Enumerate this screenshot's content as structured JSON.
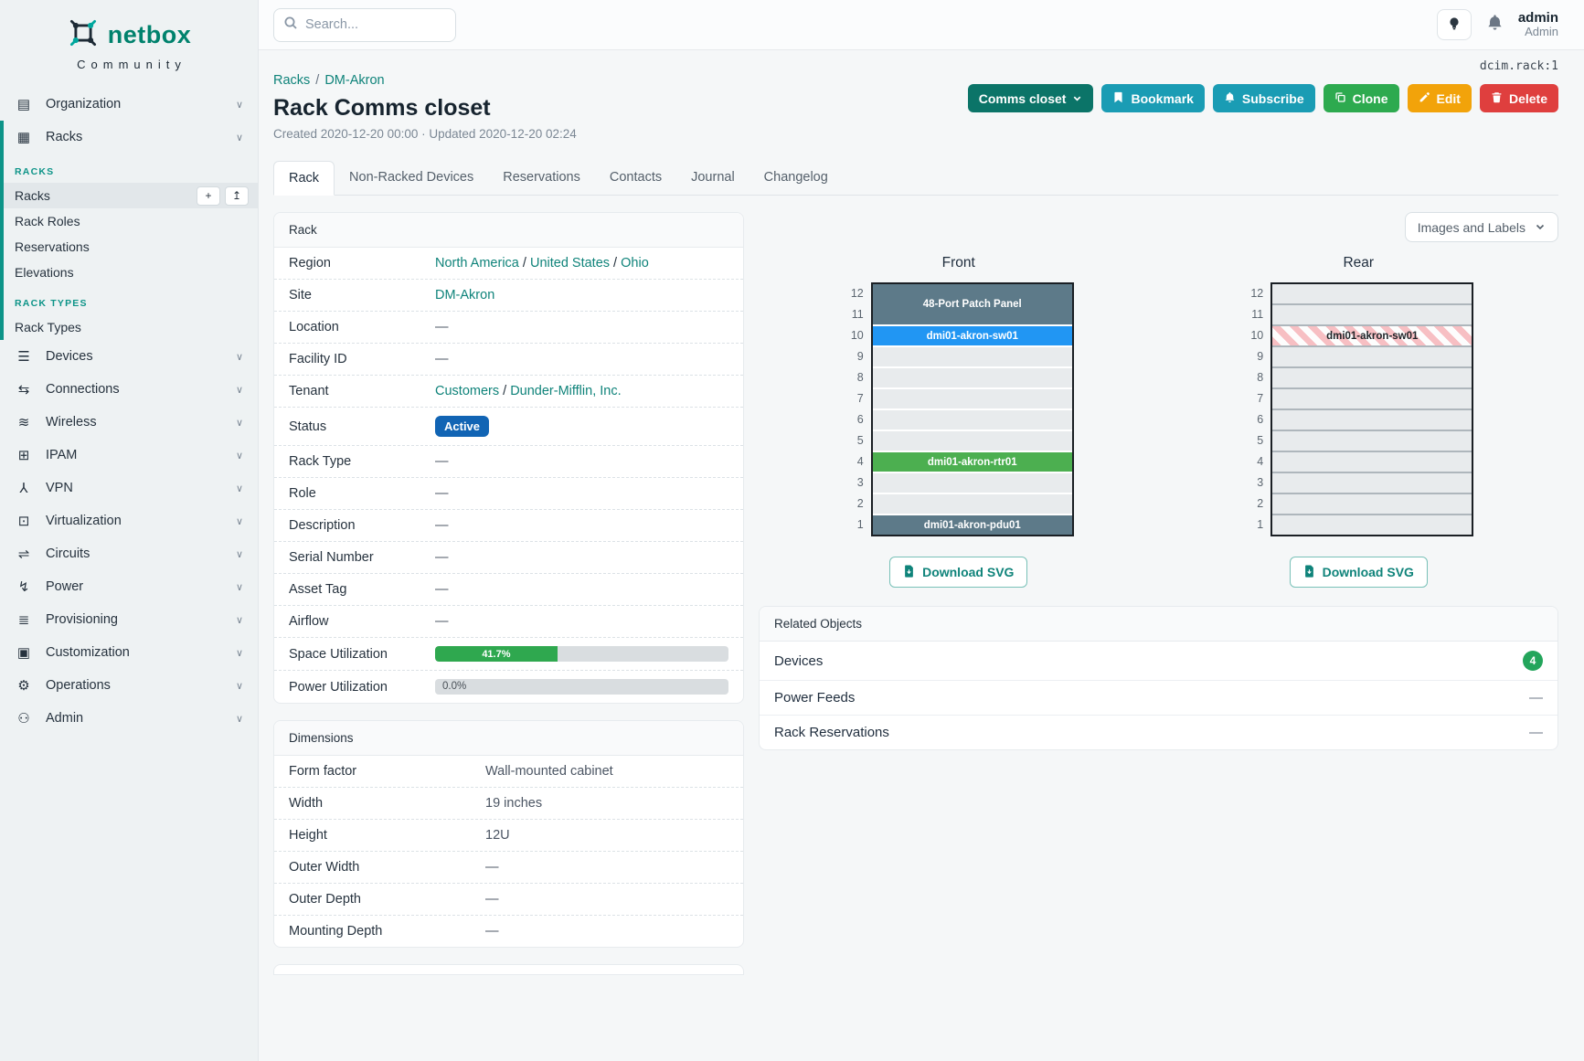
{
  "brand": {
    "name": "netbox",
    "community": "Community"
  },
  "topbar": {
    "search_placeholder": "Search...",
    "user_name": "admin",
    "user_role": "Admin"
  },
  "object_type": "dcim.rack:1",
  "colors": {
    "brand_teal": "#00826d",
    "link_teal": "#0f837a",
    "section_teal": "#0d9488",
    "status_active": "#1164b4",
    "progress_green": "#2fa84f",
    "count_badge": "#23a55b",
    "btn_group": "#0b7468",
    "btn_info": "#1a9cb4",
    "btn_clone": "#2daa4f",
    "btn_edit": "#f2a30a",
    "btn_delete": "#df3f3e",
    "unit_slate": "#5d7a89",
    "unit_blue": "#2196f3",
    "unit_green": "#4caf50"
  },
  "sidebar": {
    "top_groups": [
      {
        "label": "Organization",
        "icon": "building-icon",
        "glyph": "▤"
      }
    ],
    "racks_group": {
      "label": "Racks",
      "icon": "rack-icon",
      "glyph": "▦"
    },
    "racks_sections": [
      {
        "heading": "RACKS",
        "items": [
          {
            "label": "Racks",
            "active": true,
            "buttons": [
              {
                "name": "add-button",
                "glyph": "+"
              },
              {
                "name": "import-button",
                "glyph": "↥"
              }
            ]
          },
          {
            "label": "Rack Roles"
          },
          {
            "label": "Reservations"
          },
          {
            "label": "Elevations"
          }
        ]
      },
      {
        "heading": "RACK TYPES",
        "items": [
          {
            "label": "Rack Types"
          }
        ]
      }
    ],
    "bottom_groups": [
      {
        "label": "Devices",
        "icon": "devices-icon",
        "glyph": "☰"
      },
      {
        "label": "Connections",
        "icon": "connections-icon",
        "glyph": "⇆"
      },
      {
        "label": "Wireless",
        "icon": "wireless-icon",
        "glyph": "≋"
      },
      {
        "label": "IPAM",
        "icon": "ipam-icon",
        "glyph": "⊞"
      },
      {
        "label": "VPN",
        "icon": "vpn-icon",
        "glyph": "⅄"
      },
      {
        "label": "Virtualization",
        "icon": "virtualization-icon",
        "glyph": "⊡"
      },
      {
        "label": "Circuits",
        "icon": "circuits-icon",
        "glyph": "⇌"
      },
      {
        "label": "Power",
        "icon": "power-icon",
        "glyph": "↯"
      },
      {
        "label": "Provisioning",
        "icon": "provisioning-icon",
        "glyph": "≣"
      },
      {
        "label": "Customization",
        "icon": "customization-icon",
        "glyph": "▣"
      },
      {
        "label": "Operations",
        "icon": "operations-icon",
        "glyph": "⚙"
      },
      {
        "label": "Admin",
        "icon": "admin-icon",
        "glyph": "⚇"
      }
    ]
  },
  "breadcrumb": {
    "items": [
      "Racks",
      "DM-Akron"
    ],
    "separator": "/"
  },
  "header": {
    "title": "Rack Comms closet",
    "meta": "Created 2020-12-20 00:00 · Updated 2020-12-20 02:24"
  },
  "actions": {
    "group_button": "Comms closet",
    "bookmark": "Bookmark",
    "subscribe": "Subscribe",
    "clone": "Clone",
    "edit": "Edit",
    "delete": "Delete"
  },
  "tabs": {
    "items": [
      "Rack",
      "Non-Racked Devices",
      "Reservations",
      "Contacts",
      "Journal",
      "Changelog"
    ],
    "active_index": 0
  },
  "rack_panel": {
    "title": "Rack",
    "rows": [
      {
        "label": "Region",
        "type": "links",
        "parts": [
          "North America",
          "United States",
          "Ohio"
        ]
      },
      {
        "label": "Site",
        "type": "links",
        "parts": [
          "DM-Akron"
        ]
      },
      {
        "label": "Location",
        "type": "text",
        "value": "—"
      },
      {
        "label": "Facility ID",
        "type": "text",
        "value": "—"
      },
      {
        "label": "Tenant",
        "type": "links",
        "parts": [
          "Customers",
          "Dunder-Mifflin, Inc."
        ]
      },
      {
        "label": "Status",
        "type": "badge",
        "value": "Active"
      },
      {
        "label": "Rack Type",
        "type": "text",
        "value": "—"
      },
      {
        "label": "Role",
        "type": "text",
        "value": "—"
      },
      {
        "label": "Description",
        "type": "text",
        "value": "—"
      },
      {
        "label": "Serial Number",
        "type": "text",
        "value": "—"
      },
      {
        "label": "Asset Tag",
        "type": "text",
        "value": "—"
      },
      {
        "label": "Airflow",
        "type": "text",
        "value": "—"
      },
      {
        "label": "Space Utilization",
        "type": "progress",
        "percent": 41.7,
        "text": "41.7%"
      },
      {
        "label": "Power Utilization",
        "type": "progress",
        "percent": 0.0,
        "text": "0.0%"
      }
    ]
  },
  "dimensions_panel": {
    "title": "Dimensions",
    "rows": [
      {
        "label": "Form factor",
        "value": "Wall-mounted cabinet"
      },
      {
        "label": "Width",
        "value": "19 inches"
      },
      {
        "label": "Height",
        "value": "12U"
      },
      {
        "label": "Outer Width",
        "value": "—"
      },
      {
        "label": "Outer Depth",
        "value": "—"
      },
      {
        "label": "Mounting Depth",
        "value": "—"
      }
    ]
  },
  "elevation": {
    "toggle_label": "Images and Labels",
    "download_label": "Download SVG",
    "unit_count": 12,
    "views": [
      {
        "title": "Front",
        "units": [
          {
            "u": 12,
            "span": 2,
            "label": "48-Port Patch Panel",
            "color": "#5d7a89",
            "text_color": "#ffffff"
          },
          {
            "u": 10,
            "span": 1,
            "label": "dmi01-akron-sw01",
            "color": "#2196f3",
            "text_color": "#ffffff"
          },
          {
            "u": 9
          },
          {
            "u": 8
          },
          {
            "u": 7
          },
          {
            "u": 6
          },
          {
            "u": 5
          },
          {
            "u": 4,
            "span": 1,
            "label": "dmi01-akron-rtr01",
            "color": "#4caf50",
            "text_color": "#ffffff"
          },
          {
            "u": 3
          },
          {
            "u": 2
          },
          {
            "u": 1,
            "span": 1,
            "label": "dmi01-akron-pdu01",
            "color": "#5d7a89",
            "text_color": "#ffffff"
          }
        ]
      },
      {
        "title": "Rear",
        "units": [
          {
            "u": 12
          },
          {
            "u": 11
          },
          {
            "u": 10,
            "span": 1,
            "label": "dmi01-akron-sw01",
            "striped": true,
            "text_color": "#212529"
          },
          {
            "u": 9
          },
          {
            "u": 8
          },
          {
            "u": 7
          },
          {
            "u": 6
          },
          {
            "u": 5
          },
          {
            "u": 4
          },
          {
            "u": 3
          },
          {
            "u": 2
          },
          {
            "u": 1
          }
        ]
      }
    ]
  },
  "related_objects": {
    "title": "Related Objects",
    "rows": [
      {
        "label": "Devices",
        "badge": "4"
      },
      {
        "label": "Power Feeds",
        "value": "—"
      },
      {
        "label": "Rack Reservations",
        "value": "—"
      }
    ]
  }
}
